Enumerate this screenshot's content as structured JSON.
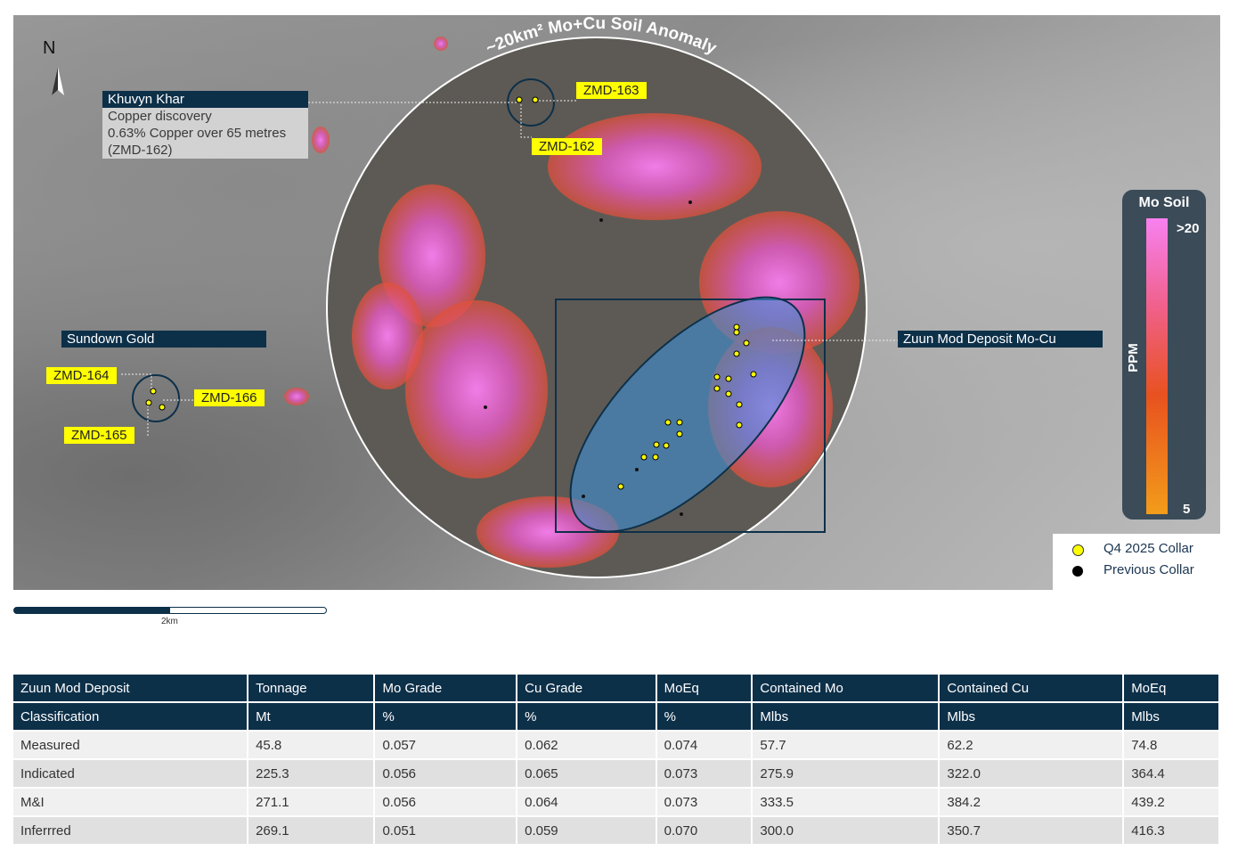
{
  "map": {
    "north": "N",
    "anomaly_label": "~20km² Mo+Cu Soil Anomaly",
    "khuvyn": [
      "Khuvyn Khar",
      "Copper discovery",
      "0.63% Copper over 65 metres",
      "(ZMD-162)"
    ],
    "sundown": "Sundown Gold",
    "zuun": "Zuun Mod Deposit Mo-Cu",
    "holes": {
      "zmd163": "ZMD-163",
      "zmd162": "ZMD-162",
      "zmd164": "ZMD-164",
      "zmd166": "ZMD-166",
      "zmd165": "ZMD-165"
    },
    "scale": "2km",
    "colorbar": {
      "title": "Mo Soil",
      "unit": "PPM",
      "max": ">20",
      "min": "5",
      "colors": [
        "#f781f0",
        "#e8521f",
        "#f39c1a"
      ]
    },
    "legend": [
      {
        "label": "Q4 2025 Collar",
        "color": "#ffff00"
      },
      {
        "label": "Previous Collar",
        "color": "#000000"
      }
    ]
  },
  "table": {
    "header1": [
      "Zuun Mod Deposit",
      "Tonnage",
      "Mo Grade",
      "Cu Grade",
      "MoEq",
      "Contained Mo",
      "Contained Cu",
      "MoEq"
    ],
    "header2": [
      "Classification",
      "Mt",
      "%",
      "%",
      "%",
      "Mlbs",
      "Mlbs",
      "Mlbs"
    ],
    "rows": [
      [
        "Measured",
        "45.8",
        "0.057",
        "0.062",
        "0.074",
        "57.7",
        "62.2",
        "74.8"
      ],
      [
        "Indicated",
        "225.3",
        "0.056",
        "0.065",
        "0.073",
        "275.9",
        "322.0",
        "364.4"
      ],
      [
        "M&I",
        "271.1",
        "0.056",
        "0.064",
        "0.073",
        "333.5",
        "384.2",
        "439.2"
      ],
      [
        "Inferrred",
        "269.1",
        "0.051",
        "0.059",
        "0.070",
        "300.0",
        "350.7",
        "416.3"
      ]
    ]
  }
}
